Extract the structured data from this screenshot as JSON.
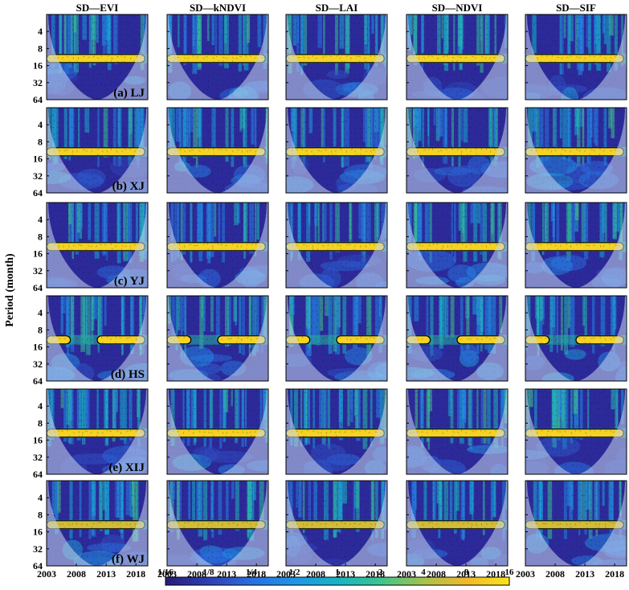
{
  "chart_data": {
    "type": "heatmap",
    "subtype": "wavelet-coherence-grid",
    "columns": [
      "SD—EVI",
      "SD—kNDVI",
      "SD—LAI",
      "SD—NDVI",
      "SD—SIF"
    ],
    "rows": [
      {
        "label": "(a) LJ",
        "band_center_period": 12,
        "band_segments": [
          [
            2003.0,
            2019.5
          ]
        ],
        "band_intensity": 12
      },
      {
        "label": "(b) XJ",
        "band_center_period": 12,
        "band_segments": [
          [
            2003.0,
            2019.5
          ]
        ],
        "band_intensity": 12
      },
      {
        "label": "(c) YJ",
        "band_center_period": 12,
        "band_segments": [
          [
            2003.0,
            2019.5
          ]
        ],
        "band_intensity": 12
      },
      {
        "label": "(d) HS",
        "band_center_period": 12,
        "band_segments": [
          [
            2003.0,
            2007.0
          ],
          [
            2011.5,
            2019.5
          ]
        ],
        "band_intensity": 12
      },
      {
        "label": "(e) XIJ",
        "band_center_period": 12,
        "band_segments": [
          [
            2003.0,
            2019.5
          ]
        ],
        "band_intensity": 12
      },
      {
        "label": "(f) WJ",
        "band_center_period": 12,
        "band_segments": [
          [
            2003.0,
            2019.5
          ]
        ],
        "band_intensity": 6
      }
    ],
    "ylabel": "Period (month)",
    "yticks": [
      4,
      8,
      16,
      32,
      64
    ],
    "ylim": [
      2,
      64
    ],
    "xticks": [
      2003,
      2008,
      2013,
      2018
    ],
    "xlim": [
      2003,
      2020
    ],
    "colorbar": {
      "ticks": [
        "1/16",
        "1/8",
        "1/4",
        "1/2",
        "1",
        "2",
        "4",
        "8",
        "16"
      ],
      "colors": [
        "#2a1a7a",
        "#2e3fb4",
        "#2a6ee0",
        "#1f95e8",
        "#17b4c6",
        "#3cc48e",
        "#a6c24c",
        "#f2b72c",
        "#f7e51c"
      ]
    },
    "background_level": "1/16",
    "background_color": "#2c2a9a",
    "coi_color": "#c9d7ee"
  }
}
